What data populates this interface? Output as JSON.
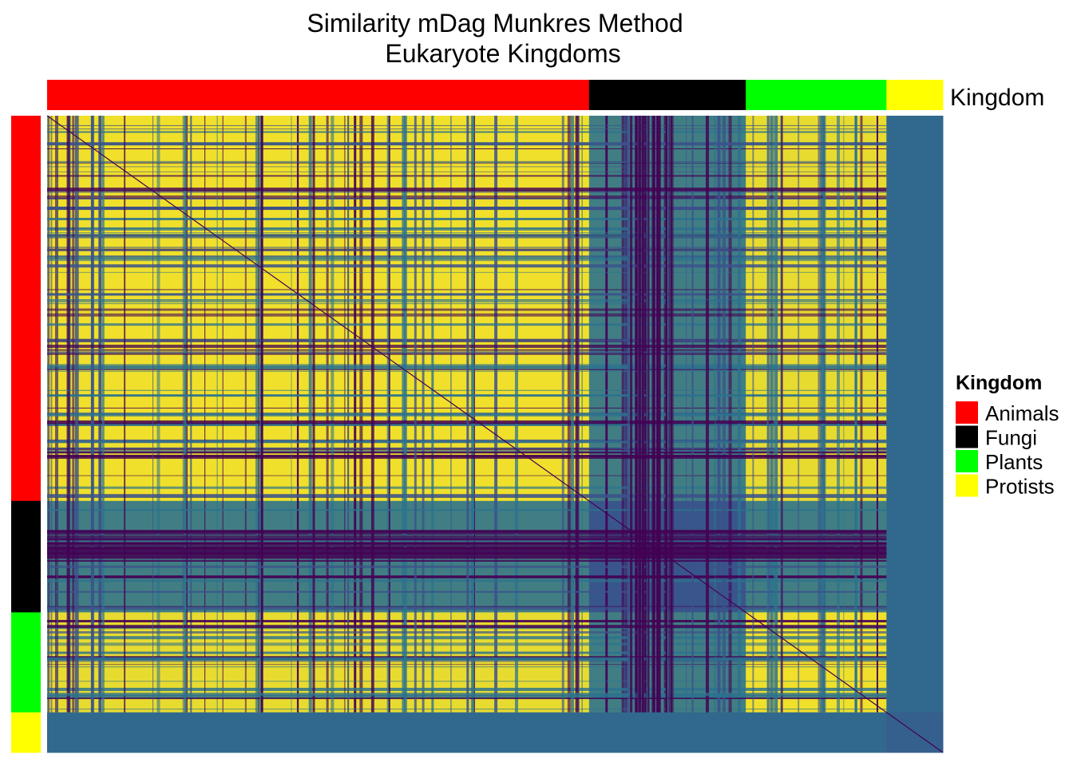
{
  "chart_data": {
    "type": "heatmap",
    "title": "Similarity mDag Munkres Method",
    "subtitle": "Eukaryote Kingdoms",
    "annotation": {
      "name": "Kingdom",
      "groups": [
        {
          "label": "Animals",
          "color": "#ff0000",
          "fraction": 0.605
        },
        {
          "label": "Fungi",
          "color": "#000000",
          "fraction": 0.175
        },
        {
          "label": "Plants",
          "color": "#00ff00",
          "fraction": 0.157
        },
        {
          "label": "Protists",
          "color": "#ffff00",
          "fraction": 0.063
        }
      ]
    },
    "legend": {
      "title": "Kingdom",
      "placement": "right",
      "entries": [
        "Animals",
        "Fungi",
        "Plants",
        "Protists"
      ]
    },
    "colormap": {
      "name": "viridis",
      "low": "#440154",
      "mid_low": "#3b528b",
      "mid": "#2c728e",
      "high": "#fde725"
    },
    "block_similarity": [
      [
        0.97,
        0.55,
        0.95,
        0.45
      ],
      [
        0.55,
        0.35,
        0.55,
        0.45
      ],
      [
        0.95,
        0.55,
        0.97,
        0.45
      ],
      [
        0.45,
        0.45,
        0.45,
        0.4
      ]
    ]
  }
}
